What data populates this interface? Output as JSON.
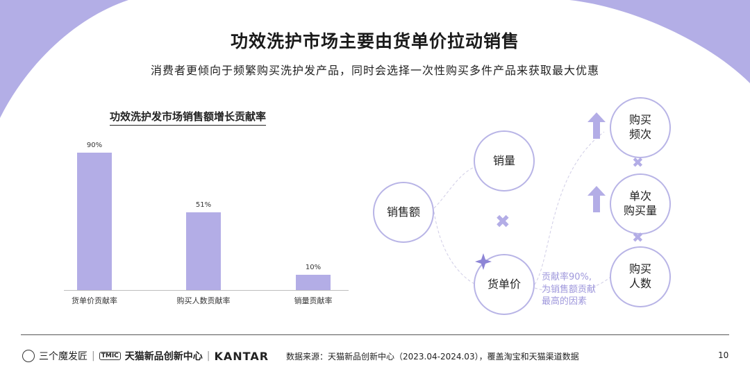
{
  "header": {
    "title": "功效洗护市场主要由货单价拉动销售",
    "subtitle": "消费者更倾向于频繁购买洗护发产品，同时会选择一次性购买多件产品来获取最大优惠"
  },
  "chart_data": {
    "type": "bar",
    "title": "功效洗护发市场销售额增长贡献率",
    "categories": [
      "货单价贡献率",
      "购买人数贡献率",
      "销量贡献率"
    ],
    "values": [
      90,
      51,
      10
    ],
    "value_labels": [
      "90%",
      "51%",
      "10%"
    ],
    "unit": "%",
    "ylim": [
      0,
      100
    ],
    "grid": false,
    "bar_color": "#b3ade6"
  },
  "diagram": {
    "nodes": {
      "sales_amount": "销售额",
      "sales_volume": "销量",
      "unit_price": "货单价",
      "purchase_frequency": "购买\n频次",
      "single_purchase_qty": "单次\n购买量",
      "buyers": "购买\n人数"
    },
    "multiply_symbol": "✖",
    "up_arrow_icon": "arrow-up-icon",
    "note": "贡献率90%,\n为销售额贡献\n最高的因素",
    "accent_color": "#b8b4e6"
  },
  "footer": {
    "logos": [
      "三个魔发匠",
      "天猫新品创新中心",
      "KANTAR"
    ],
    "logo_tmic": "TMIC",
    "separator": "|",
    "source": "数据来源：天猫新品创新中心（2023.04-2024.03），覆盖淘宝和天猫渠道数据",
    "page_number": "10"
  }
}
